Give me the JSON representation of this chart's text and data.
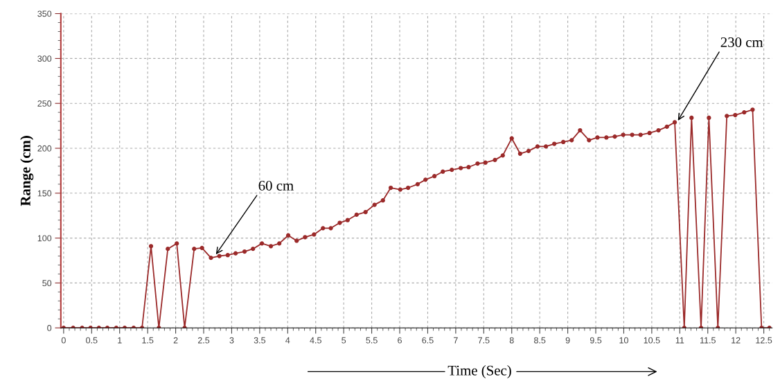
{
  "chart_data": {
    "type": "line",
    "xlabel": "Time (Sec)",
    "ylabel": "Range (cm)",
    "x": [
      0,
      0.17,
      0.33,
      0.48,
      0.63,
      0.78,
      0.94,
      1.09,
      1.25,
      1.4,
      1.56,
      1.7,
      1.86,
      2.02,
      2.16,
      2.33,
      2.47,
      2.63,
      2.78,
      2.93,
      3.07,
      3.23,
      3.38,
      3.54,
      3.7,
      3.85,
      4.01,
      4.16,
      4.31,
      4.47,
      4.63,
      4.77,
      4.93,
      5.07,
      5.23,
      5.39,
      5.55,
      5.7,
      5.84,
      6.01,
      6.15,
      6.32,
      6.46,
      6.62,
      6.77,
      6.93,
      7.09,
      7.23,
      7.39,
      7.53,
      7.7,
      7.84,
      8.0,
      8.15,
      8.3,
      8.46,
      8.61,
      8.76,
      8.92,
      9.07,
      9.22,
      9.38,
      9.53,
      9.69,
      9.84,
      9.99,
      10.15,
      10.3,
      10.46,
      10.62,
      10.77,
      10.91,
      11.08,
      11.21,
      11.38,
      11.52,
      11.68,
      11.84,
      11.99,
      12.15,
      12.3,
      12.46,
      12.6
    ],
    "series": [
      {
        "color": "#9b2a2a",
        "values": [
          0,
          0,
          0,
          0,
          0,
          0,
          0,
          0,
          0,
          0,
          91,
          0,
          88,
          94,
          0,
          88,
          89,
          78,
          80,
          81,
          83,
          85,
          88,
          94,
          91,
          94,
          103,
          97,
          101,
          104,
          111,
          111,
          117,
          120,
          126,
          129,
          137,
          142,
          156,
          154,
          156,
          160,
          165,
          169,
          174,
          176,
          178,
          179,
          183,
          184,
          187,
          192,
          211,
          194,
          197,
          202,
          202,
          205,
          207,
          209,
          220,
          209,
          212,
          212,
          213,
          215,
          215,
          215,
          217,
          220,
          224,
          229,
          0,
          234,
          0,
          234,
          0,
          236,
          237,
          240,
          243,
          0,
          0
        ]
      }
    ],
    "xlim": [
      -0.05,
      12.65
    ],
    "ylim": [
      0,
      350
    ],
    "xticks": [
      0,
      0.5,
      1,
      1.5,
      2,
      2.5,
      3,
      3.5,
      4,
      4.5,
      5,
      5.5,
      6,
      6.5,
      7,
      7.5,
      8,
      8.5,
      9,
      9.5,
      10,
      10.5,
      11,
      11.5,
      12,
      12.5
    ],
    "yticks": [
      0,
      50,
      100,
      150,
      200,
      250,
      300,
      350
    ],
    "grid": true,
    "marker": "circle",
    "line_style": "solid",
    "annotations": [
      {
        "text": "60 cm",
        "x": 2.7,
        "y": 80
      },
      {
        "text": "230 cm",
        "x": 10.95,
        "y": 229
      }
    ]
  }
}
